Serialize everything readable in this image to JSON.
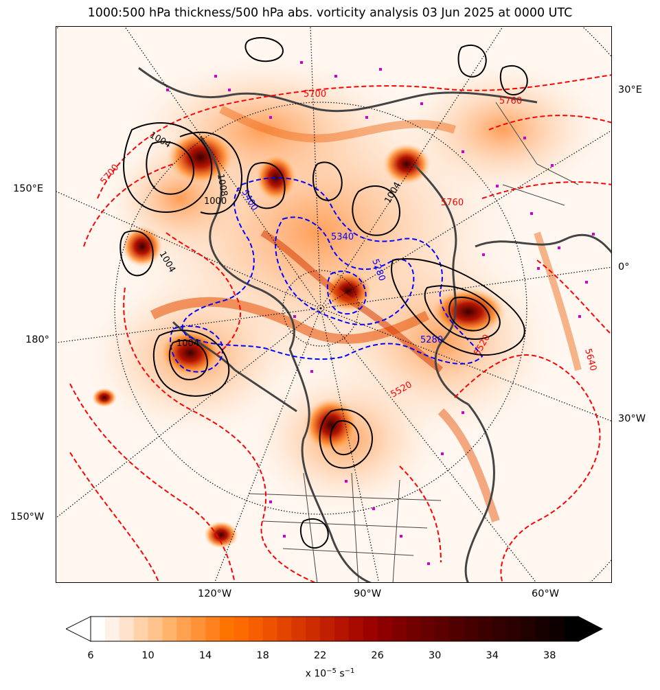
{
  "title": "1000:500 hPa thickness/500 hPa abs. vorticity analysis 03 Jun 2025 at 0000 UTC",
  "longitude_labels": {
    "e30": "30°E",
    "e150": "150°E",
    "zero": "0°",
    "d180": "180°",
    "w30": "30°W",
    "w150": "150°W",
    "w120": "120°W",
    "w90": "90°W",
    "w60": "60°W"
  },
  "contour_labels": {
    "thickness_red": [
      "5760",
      "5700",
      "5700",
      "5640",
      "5520",
      "5520",
      "5760"
    ],
    "thickness_blue": [
      "5280",
      "5340",
      "5280",
      "5400"
    ],
    "pressure_black": [
      "1004",
      "1004",
      "1004",
      "1000",
      "1004",
      "1008"
    ]
  },
  "colorbar": {
    "ticks": [
      "6",
      "10",
      "14",
      "18",
      "22",
      "26",
      "30",
      "34",
      "38"
    ],
    "label_prefix": "x 10",
    "label_exp": "−5",
    "label_unit": " s",
    "label_unit_exp": "−1",
    "colors": [
      "#ffffff",
      "#fff1e6",
      "#ffe3cc",
      "#ffd2a8",
      "#ffc48e",
      "#ffb36b",
      "#ffa24f",
      "#ff9236",
      "#ff821f",
      "#ff7400",
      "#ff6a00",
      "#f75e00",
      "#ee5200",
      "#e34500",
      "#d83800",
      "#cc2c00",
      "#c12000",
      "#b51400",
      "#a80a00",
      "#9b0300",
      "#8d0000",
      "#800000",
      "#730000",
      "#670000",
      "#5c0000",
      "#510000",
      "#470000",
      "#3d0000",
      "#330000",
      "#2a0000",
      "#210000",
      "#170000",
      "#0e0000",
      "#000000"
    ],
    "under_color": "#ffffff",
    "over_color": "#000000"
  },
  "legend_colors": {
    "thickness_warm": "#ff0000",
    "thickness_cold": "#0000ff",
    "mslp": "#000000",
    "coast": "#444444",
    "marker": "#cc00cc"
  }
}
